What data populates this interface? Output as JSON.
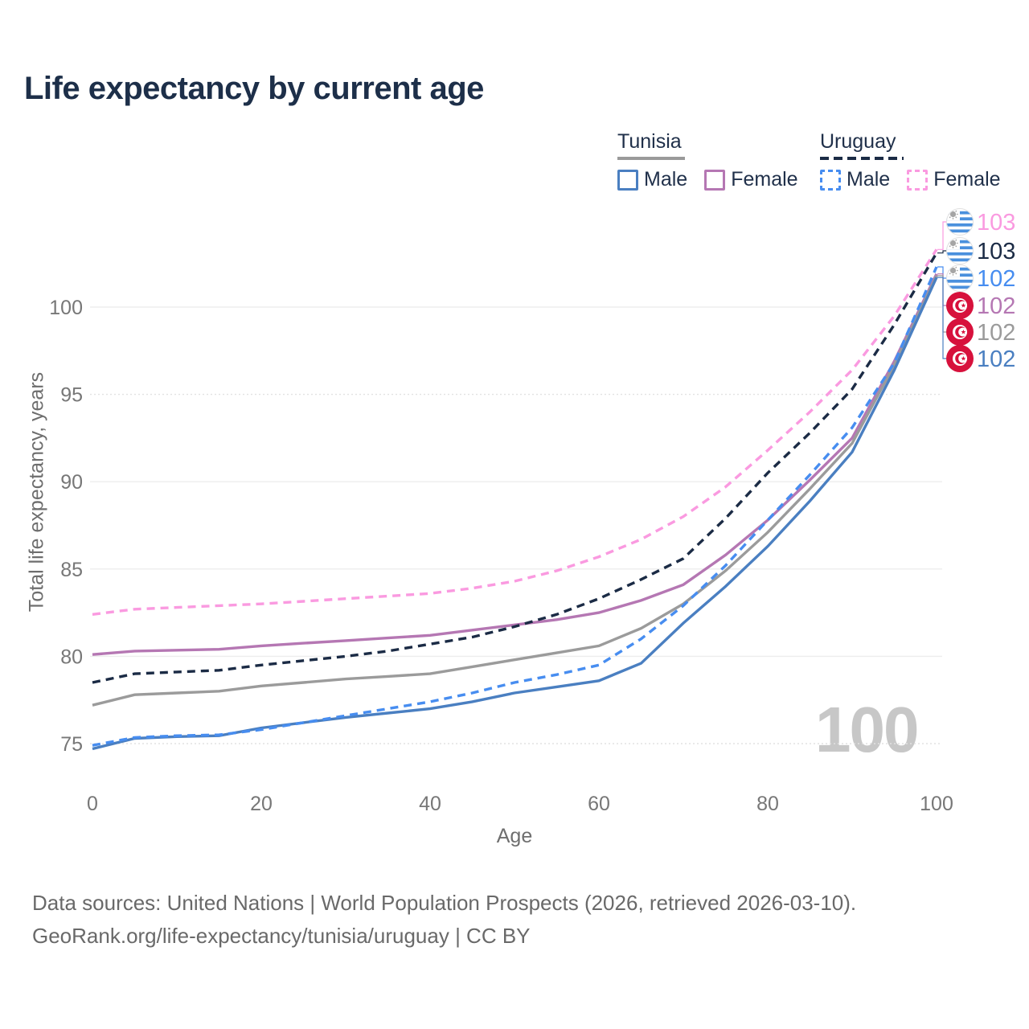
{
  "title": "Life expectancy by current age",
  "legend": {
    "groups": [
      {
        "label": "Tunisia",
        "line_style": "solid",
        "underline_color": "#9a9a9a",
        "items": [
          {
            "label": "Male",
            "color": "#4a7fc1",
            "dashed": false
          },
          {
            "label": "Female",
            "color": "#b577b3",
            "dashed": false
          }
        ]
      },
      {
        "label": "Uruguay",
        "line_style": "dashed",
        "underline_color": "#1b2b45",
        "items": [
          {
            "label": "Male",
            "color": "#478df0",
            "dashed": true
          },
          {
            "label": "Female",
            "color": "#fa9ae0",
            "dashed": true
          }
        ]
      }
    ]
  },
  "chart_data": {
    "type": "line",
    "title": "Life expectancy by current age",
    "xlabel": "Age",
    "ylabel": "Total life expectancy, years",
    "xticks": [
      0,
      20,
      40,
      60,
      80,
      100
    ],
    "yticks": [
      75,
      80,
      85,
      90,
      95,
      100
    ],
    "xlim": [
      0,
      100
    ],
    "ylim": [
      74,
      104
    ],
    "grid": "horizontal",
    "legend_position": "top-right",
    "watermark": "100",
    "x": [
      0,
      5,
      10,
      15,
      20,
      25,
      30,
      35,
      40,
      45,
      50,
      55,
      60,
      65,
      70,
      75,
      80,
      85,
      90,
      95,
      100
    ],
    "series": [
      {
        "id": "uruguay-female",
        "name": "Uruguay Female",
        "country": "Uruguay",
        "sex": "Female",
        "color": "#fa9ae0",
        "dashed": true,
        "flag": "uruguay",
        "end_label": "103",
        "values": [
          82.4,
          82.7,
          82.8,
          82.9,
          83.0,
          83.15,
          83.3,
          83.45,
          83.6,
          83.9,
          84.3,
          84.9,
          85.7,
          86.7,
          88.0,
          89.7,
          91.8,
          94.0,
          96.4,
          99.5,
          103.3
        ]
      },
      {
        "id": "uruguay-total",
        "name": "Uruguay",
        "country": "Uruguay",
        "sex": "Both",
        "color": "#1b2b45",
        "dashed": true,
        "flag": "uruguay",
        "end_label": "103",
        "values": [
          78.5,
          79.0,
          79.1,
          79.2,
          79.5,
          79.75,
          80.0,
          80.3,
          80.7,
          81.1,
          81.7,
          82.4,
          83.3,
          84.4,
          85.6,
          87.9,
          90.5,
          92.8,
          95.3,
          99.0,
          103.1
        ]
      },
      {
        "id": "uruguay-male",
        "name": "Uruguay Male",
        "country": "Uruguay",
        "sex": "Male",
        "color": "#478df0",
        "dashed": true,
        "flag": "uruguay",
        "end_label": "102",
        "values": [
          74.9,
          75.35,
          75.45,
          75.5,
          75.8,
          76.2,
          76.6,
          77.0,
          77.4,
          77.9,
          78.5,
          78.95,
          79.5,
          81.0,
          82.9,
          85.2,
          87.8,
          90.4,
          93.1,
          96.8,
          102.3
        ]
      },
      {
        "id": "tunisia-female",
        "name": "Tunisia Female",
        "country": "Tunisia",
        "sex": "Female",
        "color": "#b577b3",
        "dashed": false,
        "flag": "tunisia",
        "end_label": "102",
        "values": [
          80.1,
          80.3,
          80.35,
          80.4,
          80.6,
          80.75,
          80.9,
          81.05,
          81.2,
          81.5,
          81.8,
          82.1,
          82.5,
          83.2,
          84.1,
          85.8,
          87.8,
          90.1,
          92.5,
          96.9,
          101.9
        ]
      },
      {
        "id": "tunisia-total",
        "name": "Tunisia",
        "country": "Tunisia",
        "sex": "Both",
        "color": "#9b9b9b",
        "dashed": false,
        "flag": "tunisia",
        "end_label": "102",
        "values": [
          77.2,
          77.8,
          77.9,
          78.0,
          78.3,
          78.5,
          78.7,
          78.85,
          79.0,
          79.4,
          79.8,
          80.2,
          80.6,
          81.6,
          83.0,
          84.9,
          87.1,
          89.6,
          92.2,
          96.7,
          101.8
        ]
      },
      {
        "id": "tunisia-male",
        "name": "Tunisia Male",
        "country": "Tunisia",
        "sex": "Male",
        "color": "#4a7fc1",
        "dashed": false,
        "flag": "tunisia",
        "end_label": "102",
        "values": [
          74.7,
          75.3,
          75.4,
          75.45,
          75.9,
          76.2,
          76.5,
          76.75,
          77.0,
          77.4,
          77.9,
          78.25,
          78.6,
          79.6,
          81.9,
          84.0,
          86.3,
          88.9,
          91.7,
          96.4,
          101.7
        ]
      }
    ]
  },
  "footer": {
    "line1": "Data sources: United Nations | World Population Prospects (2026, retrieved 2026-03-10).",
    "line2": "GeoRank.org/life-expectancy/tunisia/uruguay | CC BY"
  }
}
